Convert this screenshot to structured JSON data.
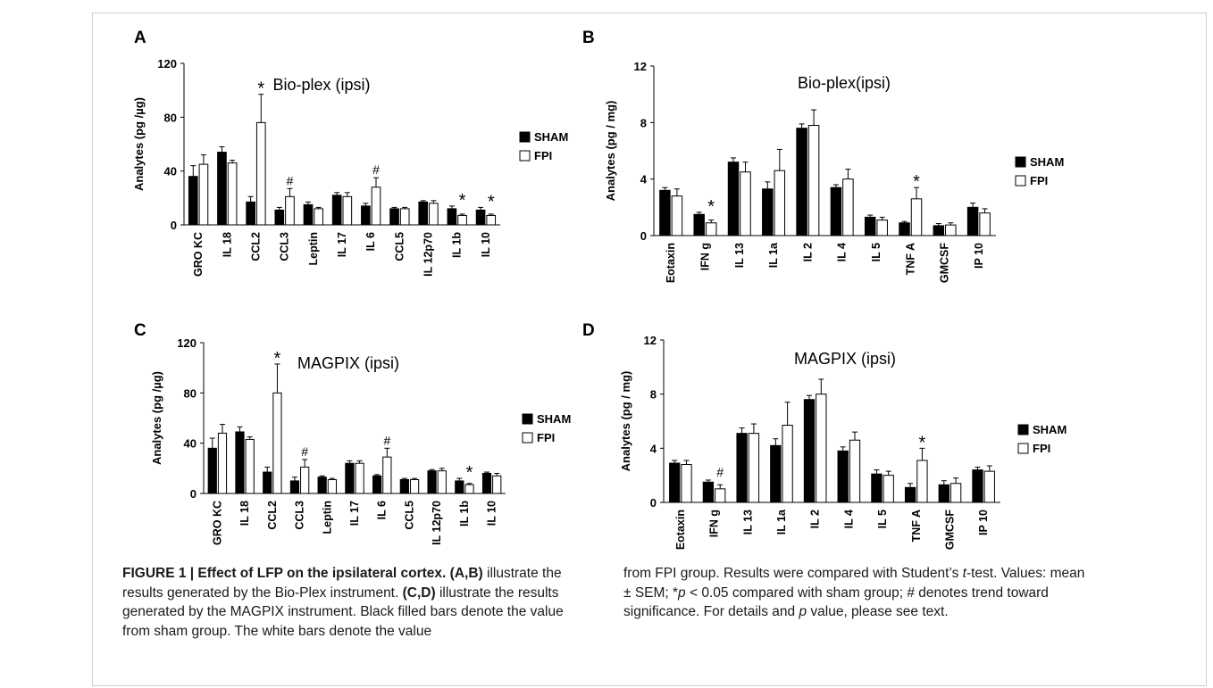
{
  "figure": {
    "caption_left": {
      "label": "FIGURE 1 | Effect of LFP on the ipsilateral cortex.",
      "ab": "(A,B)",
      "t1": "illustrate the results generated by the Bio-Plex instrument.",
      "cd": "(C,D)",
      "t2": "illustrate the results generated by the MAGPIX instrument. Black filled bars denote the value from sham group. The white bars denote the value"
    },
    "caption_right": {
      "t1": "from FPI group. Results were compared with Student’s",
      "ttest_italic": "t",
      "t2": "-test. Values: mean ± SEM; *",
      "p_italic": "p",
      "t3": "< 0.05 compared with sham group; # denotes trend toward significance. For details and",
      "p2_italic": "p",
      "t4": "value, please see text."
    }
  },
  "chart_data": [
    {
      "panel": "A",
      "type": "bar",
      "title": "Bio-plex (ipsi)",
      "ylabel": "Analytes (pg /µg)",
      "ylim": [
        0,
        120
      ],
      "yticks": [
        0,
        40,
        80,
        120
      ],
      "categories": [
        "GRO KC",
        "IL 18",
        "CCL2",
        "CCL3",
        "Leptin",
        "IL 17",
        "IL 6",
        "CCL5",
        "IL 12p70",
        "IL 1b",
        "IL 10"
      ],
      "series": [
        {
          "name": "SHAM",
          "color": "#000000",
          "values": [
            36,
            54,
            17,
            11,
            15,
            22,
            14,
            12,
            17,
            12,
            11
          ],
          "err": [
            8,
            4,
            4,
            2,
            2,
            2,
            2,
            1,
            1,
            2,
            2
          ]
        },
        {
          "name": "FPI",
          "color": "#ffffff",
          "values": [
            45,
            46,
            76,
            21,
            12,
            21,
            28,
            12,
            16,
            7,
            7
          ],
          "err": [
            7,
            2,
            21,
            6,
            1,
            3,
            7,
            1,
            2,
            1,
            1
          ]
        }
      ],
      "annotations": [
        {
          "category": "CCL2",
          "text": "*"
        },
        {
          "category": "CCL3",
          "text": "#"
        },
        {
          "category": "IL 6",
          "text": "#"
        },
        {
          "category": "IL 1b",
          "text": "*"
        },
        {
          "category": "IL 10",
          "text": "*"
        }
      ],
      "legend": "right"
    },
    {
      "panel": "B",
      "type": "bar",
      "title": "Bio-plex(ipsi)",
      "ylabel": "Analytes (pg / mg)",
      "ylim": [
        0,
        12
      ],
      "yticks": [
        0,
        4,
        8,
        12
      ],
      "categories": [
        "Eotaxin",
        "IFN g",
        "IL 13",
        "IL 1a",
        "IL 2",
        "IL 4",
        "IL 5",
        "TNF A",
        "GMCSF",
        "IP 10"
      ],
      "series": [
        {
          "name": "SHAM",
          "color": "#000000",
          "values": [
            3.2,
            1.5,
            5.2,
            3.3,
            7.6,
            3.4,
            1.3,
            0.9,
            0.7,
            2.0
          ],
          "err": [
            0.2,
            0.15,
            0.3,
            0.5,
            0.3,
            0.2,
            0.15,
            0.1,
            0.15,
            0.3
          ]
        },
        {
          "name": "FPI",
          "color": "#ffffff",
          "values": [
            2.8,
            0.9,
            4.5,
            4.6,
            7.8,
            4.0,
            1.1,
            2.6,
            0.75,
            1.6
          ],
          "err": [
            0.5,
            0.2,
            0.7,
            1.5,
            1.1,
            0.7,
            0.2,
            0.8,
            0.15,
            0.3
          ]
        }
      ],
      "annotations": [
        {
          "category": "IFN g",
          "text": "*"
        },
        {
          "category": "TNF A",
          "text": "*"
        }
      ],
      "legend": "right"
    },
    {
      "panel": "C",
      "type": "bar",
      "title": "MAGPIX (ipsi)",
      "ylabel": "Analytes (pg /µg)",
      "ylim": [
        0,
        120
      ],
      "yticks": [
        0,
        40,
        80,
        120
      ],
      "categories": [
        "GRO KC",
        "IL 18",
        "CCL2",
        "CCL3",
        "Leptin",
        "IL 17",
        "IL 6",
        "CCL5",
        "IL 12p70",
        "IL 1b",
        "IL 10"
      ],
      "series": [
        {
          "name": "SHAM",
          "color": "#000000",
          "values": [
            36,
            49,
            17,
            10,
            13,
            24,
            14,
            11,
            18,
            10,
            16
          ],
          "err": [
            8,
            4,
            4,
            3,
            1,
            2,
            1,
            1,
            1,
            2,
            1
          ]
        },
        {
          "name": "FPI",
          "color": "#ffffff",
          "values": [
            48,
            43,
            80,
            21,
            11,
            24,
            29,
            11,
            18,
            7,
            14
          ],
          "err": [
            7,
            2,
            23,
            6,
            1,
            2,
            7,
            1,
            2,
            1,
            2
          ]
        }
      ],
      "annotations": [
        {
          "category": "CCL2",
          "text": "*"
        },
        {
          "category": "CCL3",
          "text": "#"
        },
        {
          "category": "IL 6",
          "text": "#"
        },
        {
          "category": "IL 1b",
          "text": "*"
        }
      ],
      "legend": "right"
    },
    {
      "panel": "D",
      "type": "bar",
      "title": "MAGPIX (ipsi)",
      "ylabel": "Analytes (pg / mg)",
      "ylim": [
        0,
        12
      ],
      "yticks": [
        0,
        4,
        8,
        12
      ],
      "categories": [
        "Eotaxin",
        "IFN g",
        "IL 13",
        "IL 1a",
        "IL 2",
        "IL 4",
        "IL 5",
        "TNF A",
        "GMCSF",
        "IP 10"
      ],
      "series": [
        {
          "name": "SHAM",
          "color": "#000000",
          "values": [
            2.9,
            1.5,
            5.1,
            4.2,
            7.6,
            3.8,
            2.1,
            1.1,
            1.3,
            2.4
          ],
          "err": [
            0.2,
            0.15,
            0.4,
            0.5,
            0.3,
            0.3,
            0.3,
            0.3,
            0.3,
            0.2
          ]
        },
        {
          "name": "FPI",
          "color": "#ffffff",
          "values": [
            2.8,
            1.0,
            5.1,
            5.7,
            8.0,
            4.6,
            2.0,
            3.1,
            1.4,
            2.3
          ],
          "err": [
            0.3,
            0.3,
            0.7,
            1.7,
            1.1,
            0.6,
            0.3,
            0.9,
            0.4,
            0.4
          ]
        }
      ],
      "annotations": [
        {
          "category": "IFN g",
          "text": "#"
        },
        {
          "category": "TNF A",
          "text": "*"
        }
      ],
      "legend": "right"
    }
  ]
}
